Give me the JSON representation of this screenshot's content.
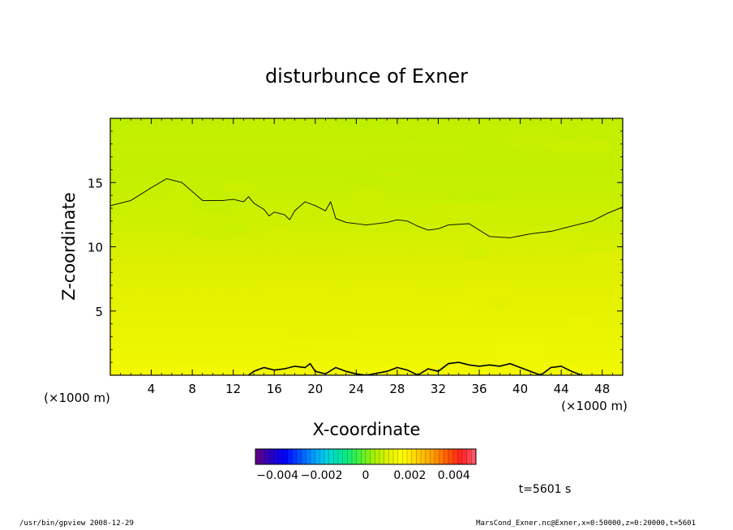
{
  "chart_data": {
    "type": "heatmap",
    "title": "disturbunce of Exner",
    "xlabel": "X-coordinate",
    "ylabel": "Z-coordinate",
    "x_unit": "(×1000 m)",
    "y_unit": "(×1000 m)",
    "xlim": [
      0,
      50
    ],
    "ylim": [
      0,
      20
    ],
    "x_ticks": [
      4,
      8,
      12,
      16,
      20,
      24,
      28,
      32,
      36,
      40,
      44,
      48
    ],
    "y_ticks": [
      5,
      10,
      15
    ],
    "colorbar": {
      "min": -0.005,
      "max": 0.005,
      "tick_values": [
        -0.004,
        -0.002,
        0,
        0.002,
        0.004
      ],
      "tick_labels": [
        "−0.004",
        "−0.002",
        "0",
        "0.002",
        "0.004"
      ],
      "colors": [
        "#6a0080",
        "#2a00c0",
        "#0000ff",
        "#0050ff",
        "#00a0ff",
        "#00d8d8",
        "#00e890",
        "#40f040",
        "#a0f000",
        "#e0f000",
        "#ffff00",
        "#ffd000",
        "#ffa000",
        "#ff6000",
        "#ff2020",
        "#ff6070"
      ]
    },
    "field_rows": [
      {
        "z": 20,
        "value": 0.00066
      },
      {
        "z": 18,
        "value": 0.00072
      },
      {
        "z": 16,
        "value": 0.0007
      },
      {
        "z": 14,
        "value": 0.00074
      },
      {
        "z": 12,
        "value": 0.0008
      },
      {
        "z": 10,
        "value": 0.0009
      },
      {
        "z": 8,
        "value": 0.001
      },
      {
        "z": 6,
        "value": 0.00108
      },
      {
        "z": 4,
        "value": 0.00116
      },
      {
        "z": 2,
        "value": 0.00126
      },
      {
        "z": 0,
        "value": 0.0014
      }
    ],
    "contour_upper": [
      [
        0,
        13.2
      ],
      [
        2,
        13.6
      ],
      [
        4,
        14.6
      ],
      [
        5.5,
        15.3
      ],
      [
        7,
        15.0
      ],
      [
        8,
        14.3
      ],
      [
        9,
        13.6
      ],
      [
        11,
        13.6
      ],
      [
        12,
        13.7
      ],
      [
        13,
        13.5
      ],
      [
        13.5,
        13.9
      ],
      [
        14,
        13.4
      ],
      [
        15,
        12.9
      ],
      [
        15.5,
        12.4
      ],
      [
        16,
        12.7
      ],
      [
        17,
        12.5
      ],
      [
        17.5,
        12.1
      ],
      [
        18,
        12.8
      ],
      [
        19,
        13.5
      ],
      [
        20,
        13.2
      ],
      [
        21,
        12.8
      ],
      [
        21.5,
        13.5
      ],
      [
        22,
        12.2
      ],
      [
        23,
        11.9
      ],
      [
        25,
        11.7
      ],
      [
        27,
        11.9
      ],
      [
        28,
        12.1
      ],
      [
        29,
        12.0
      ],
      [
        30,
        11.6
      ],
      [
        31,
        11.3
      ],
      [
        32,
        11.4
      ],
      [
        33,
        11.7
      ],
      [
        35,
        11.8
      ],
      [
        36,
        11.3
      ],
      [
        37,
        10.8
      ],
      [
        39,
        10.7
      ],
      [
        41,
        11.0
      ],
      [
        43,
        11.2
      ],
      [
        45,
        11.6
      ],
      [
        47,
        12.0
      ],
      [
        48.5,
        12.6
      ],
      [
        50,
        13.1
      ]
    ],
    "contour_lower": [
      [
        13.5,
        0
      ],
      [
        14,
        0.3
      ],
      [
        15,
        0.6
      ],
      [
        16,
        0.4
      ],
      [
        17,
        0.5
      ],
      [
        18,
        0.7
      ],
      [
        19,
        0.6
      ],
      [
        19.5,
        0.9
      ],
      [
        20,
        0.3
      ],
      [
        21,
        0.1
      ],
      [
        22,
        0.6
      ],
      [
        23,
        0.3
      ],
      [
        24,
        0.1
      ],
      [
        25,
        0
      ],
      [
        27,
        0.3
      ],
      [
        28,
        0.6
      ],
      [
        29,
        0.4
      ],
      [
        30,
        0
      ],
      [
        31,
        0.5
      ],
      [
        32,
        0.3
      ],
      [
        33,
        0.9
      ],
      [
        34,
        1.0
      ],
      [
        35,
        0.8
      ],
      [
        36,
        0.7
      ],
      [
        37,
        0.8
      ],
      [
        38,
        0.7
      ],
      [
        39,
        0.9
      ],
      [
        40,
        0.6
      ],
      [
        41,
        0.3
      ],
      [
        42,
        0
      ],
      [
        43,
        0.6
      ],
      [
        44,
        0.7
      ],
      [
        45,
        0.3
      ],
      [
        46,
        0
      ]
    ],
    "time_label": "t=5601 s"
  },
  "footer": {
    "left": "/usr/bin/gpview  2008-12-29",
    "right": "MarsCond_Exner.nc@Exner,x=0:50000,z=0:20000,t=5601"
  }
}
